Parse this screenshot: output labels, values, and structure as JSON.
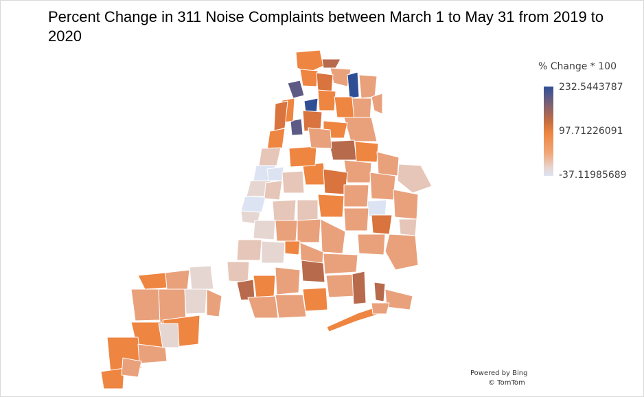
{
  "title": "Percent Change in 311 Noise Complaints between March 1 to May 31 from 2019 to 2020",
  "legend": {
    "title": "% Change * 100",
    "max_label": "232.5443787",
    "mid_label": "97.71226091",
    "min_label": "-37.11985689",
    "scale": "continuous",
    "colors": {
      "max": "#2f4f95",
      "mid": "#ee8541",
      "min": "#dde3f2"
    }
  },
  "attribution": {
    "powered_by": "Powered by Bing",
    "copyright": "© TomTom"
  },
  "map": {
    "region": "New York City ZIP areas",
    "fill_colors": {
      "blue_high": "#2f4f95",
      "purple_high": "#5e5a86",
      "brown": "#b86a4c",
      "dark_orange": "#d9743f",
      "orange": "#ee8541",
      "light_orange": "#e9a17c",
      "pale": "#e6c6b8",
      "pink_grey": "#e6d6d2",
      "light_blue": "#dce4f3"
    }
  }
}
